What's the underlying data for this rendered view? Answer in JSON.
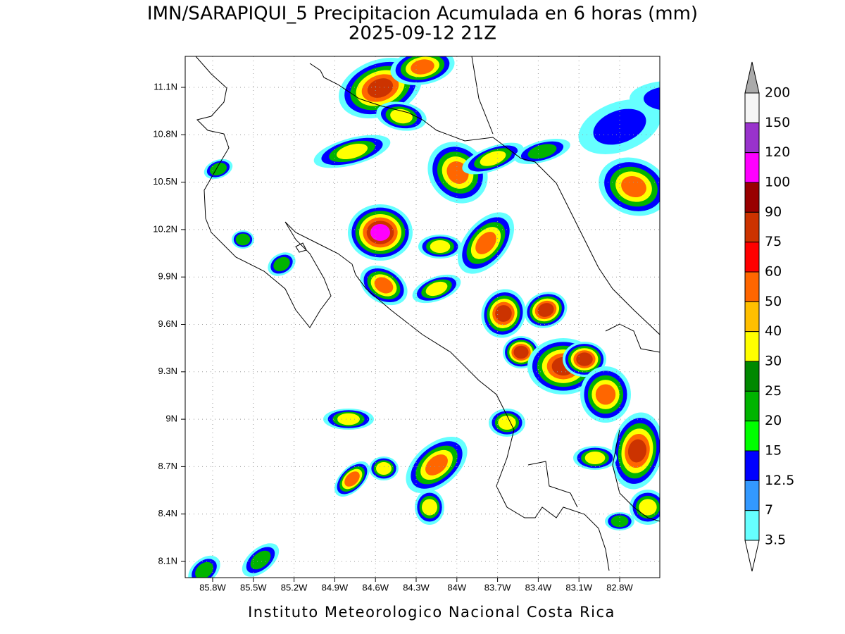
{
  "map": {
    "title": "IMN/SARAPIQUI_5 Precipitacion Acumulada en 6 horas (mm)",
    "subtitle": "2025-09-12 21Z",
    "credit": "Instituto Meteorologico Nacional Costa Rica",
    "lat_ticks": [
      "11.1N",
      "10.8N",
      "10.5N",
      "10.2N",
      "9.9N",
      "9.6N",
      "9.3N",
      "9N",
      "8.7N",
      "8.4N",
      "8.1N"
    ],
    "lon_ticks": [
      "85.8W",
      "85.5W",
      "85.2W",
      "84.9W",
      "84.6W",
      "84.3W",
      "84W",
      "83.7W",
      "83.4W",
      "83.1W",
      "82.8W"
    ],
    "legend": {
      "levels": [
        "200",
        "150",
        "120",
        "100",
        "90",
        "75",
        "60",
        "50",
        "40",
        "30",
        "25",
        "20",
        "15",
        "12.5",
        "7",
        "3.5"
      ],
      "colors": [
        "#f5f5f5",
        "#9933cc",
        "#ff00ff",
        "#990000",
        "#cc3300",
        "#ff0000",
        "#ff6600",
        "#ffbf00",
        "#ffff00",
        "#008800",
        "#00b400",
        "#00ff00",
        "#0000ff",
        "#3399ff",
        "#66ffff"
      ],
      "over_color": "#aaaaaa",
      "under_color": "#ffffff"
    }
  }
}
